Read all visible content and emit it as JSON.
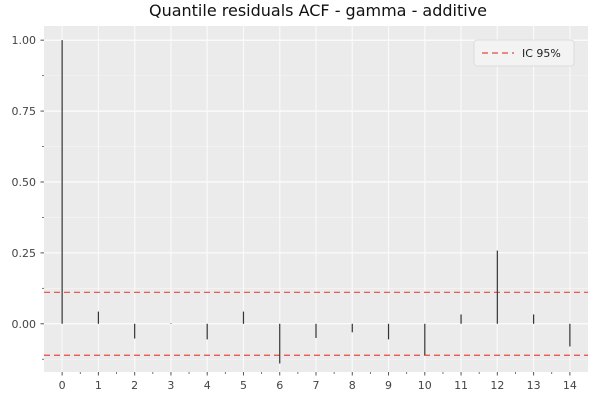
{
  "chart_data": {
    "type": "bar",
    "title": "Quantile residuals ACF - gamma - additive",
    "xlabel": "",
    "ylabel": "",
    "x": [
      0,
      1,
      2,
      3,
      4,
      5,
      6,
      7,
      8,
      9,
      10,
      11,
      12,
      13,
      14
    ],
    "values": [
      1.0,
      0.043,
      -0.052,
      0.002,
      -0.055,
      0.043,
      -0.14,
      -0.05,
      -0.03,
      -0.055,
      -0.11,
      0.033,
      0.258,
      0.033,
      -0.08
    ],
    "xlim": [
      -0.5,
      14.5
    ],
    "ylim": [
      -0.17,
      1.05
    ],
    "yticks": [
      "1.00",
      "0.75",
      "0.50",
      "0.25",
      "0.00"
    ],
    "ytick_values": [
      1.0,
      0.75,
      0.5,
      0.25,
      0.0
    ],
    "xticks": [
      "0",
      "1",
      "2",
      "3",
      "4",
      "5",
      "6",
      "7",
      "8",
      "9",
      "10",
      "11",
      "12",
      "13",
      "14"
    ],
    "confidence_band": {
      "upper": 0.111,
      "lower": -0.111,
      "color": "#e8493f",
      "style": "dashed",
      "label": "IC 95%"
    },
    "bar_color": "#333333",
    "grid": true,
    "background": "#ebebeb",
    "legend": {
      "position": "top-right",
      "entries": [
        "IC 95%"
      ]
    }
  }
}
